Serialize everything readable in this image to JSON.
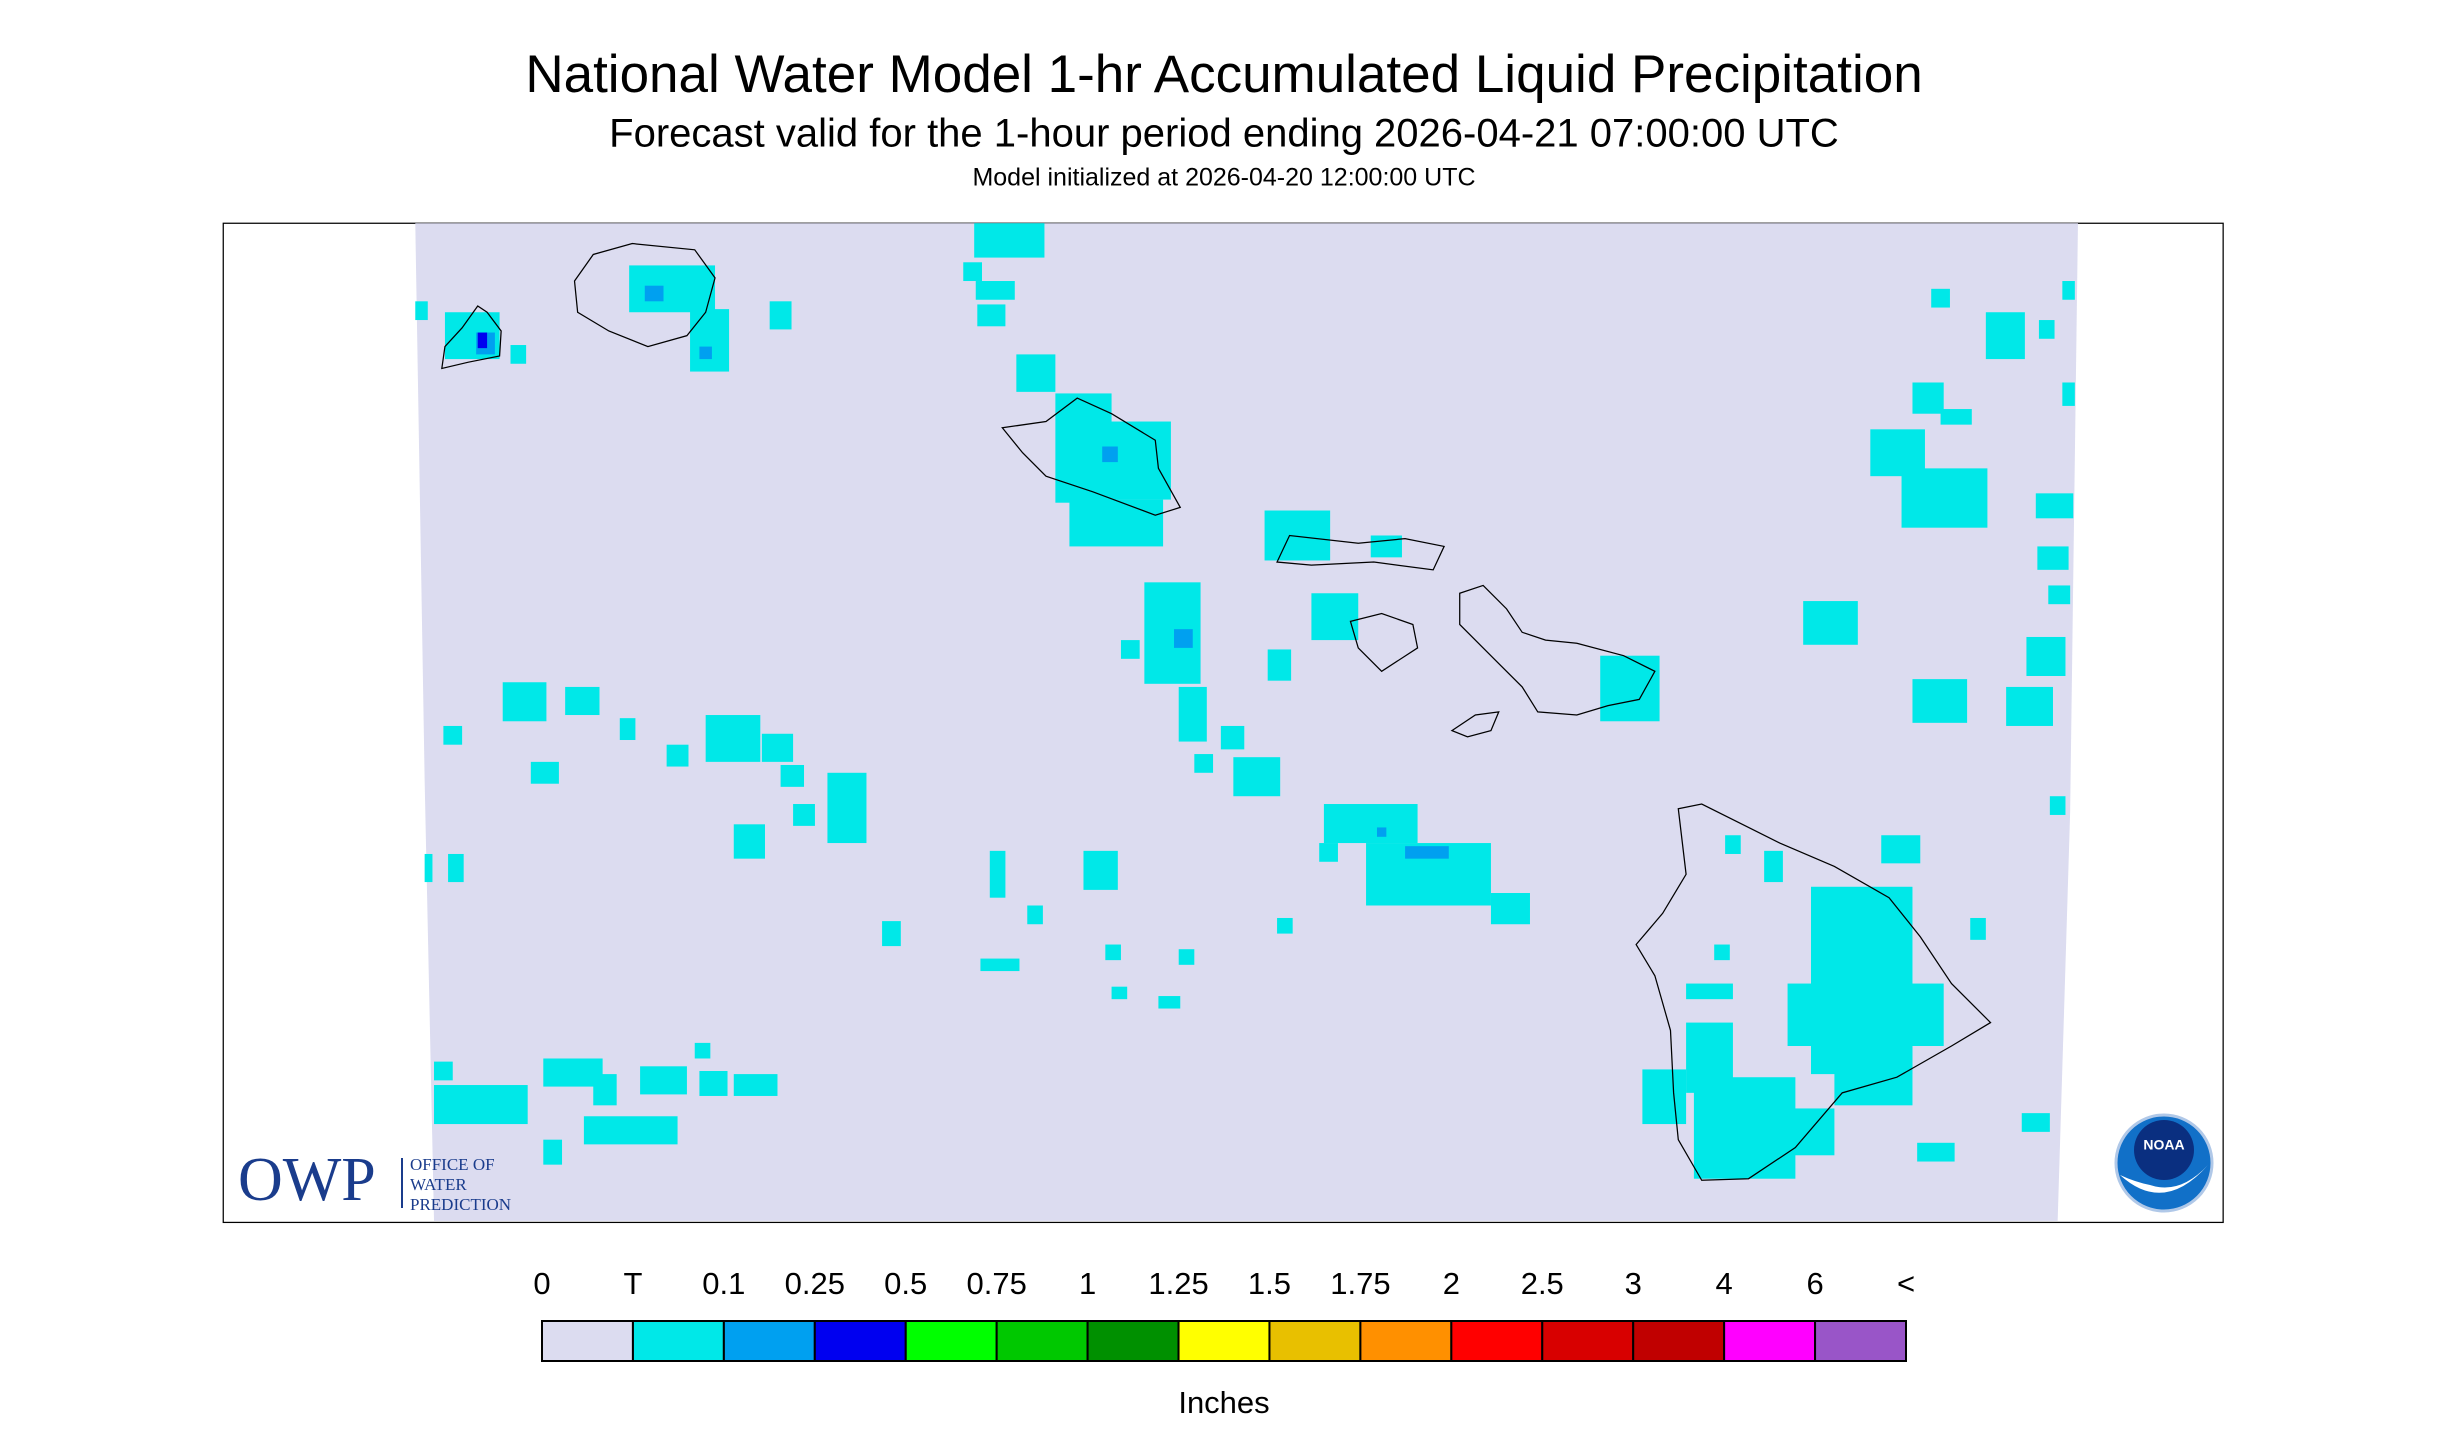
{
  "header": {
    "title": "National Water Model 1-hr Accumulated Liquid Precipitation",
    "subtitle": "Forecast valid for the 1-hour period ending 2026-04-21 07:00:00 UTC",
    "init": "Model initialized at 2026-04-20 12:00:00 UTC"
  },
  "logos": {
    "owp": "OWP",
    "owp_lines": [
      "OFFICE OF",
      "WATER",
      "PREDICTION"
    ],
    "noaa": "NOAA"
  },
  "legend": {
    "labels": [
      "0",
      "T",
      "0.1",
      "0.25",
      "0.5",
      "0.75",
      "1",
      "1.25",
      "1.5",
      "1.75",
      "2",
      "2.5",
      "3",
      "4",
      "6",
      "<"
    ],
    "colors": [
      "#dcdcf0",
      "#00e8e8",
      "#00a0f0",
      "#0000f0",
      "#00ff00",
      "#00c800",
      "#009000",
      "#ffff00",
      "#e8c000",
      "#ff9000",
      "#ff0000",
      "#d80000",
      "#c00000",
      "#ff00ff",
      "#9955c8"
    ],
    "units": "Inches"
  }
}
